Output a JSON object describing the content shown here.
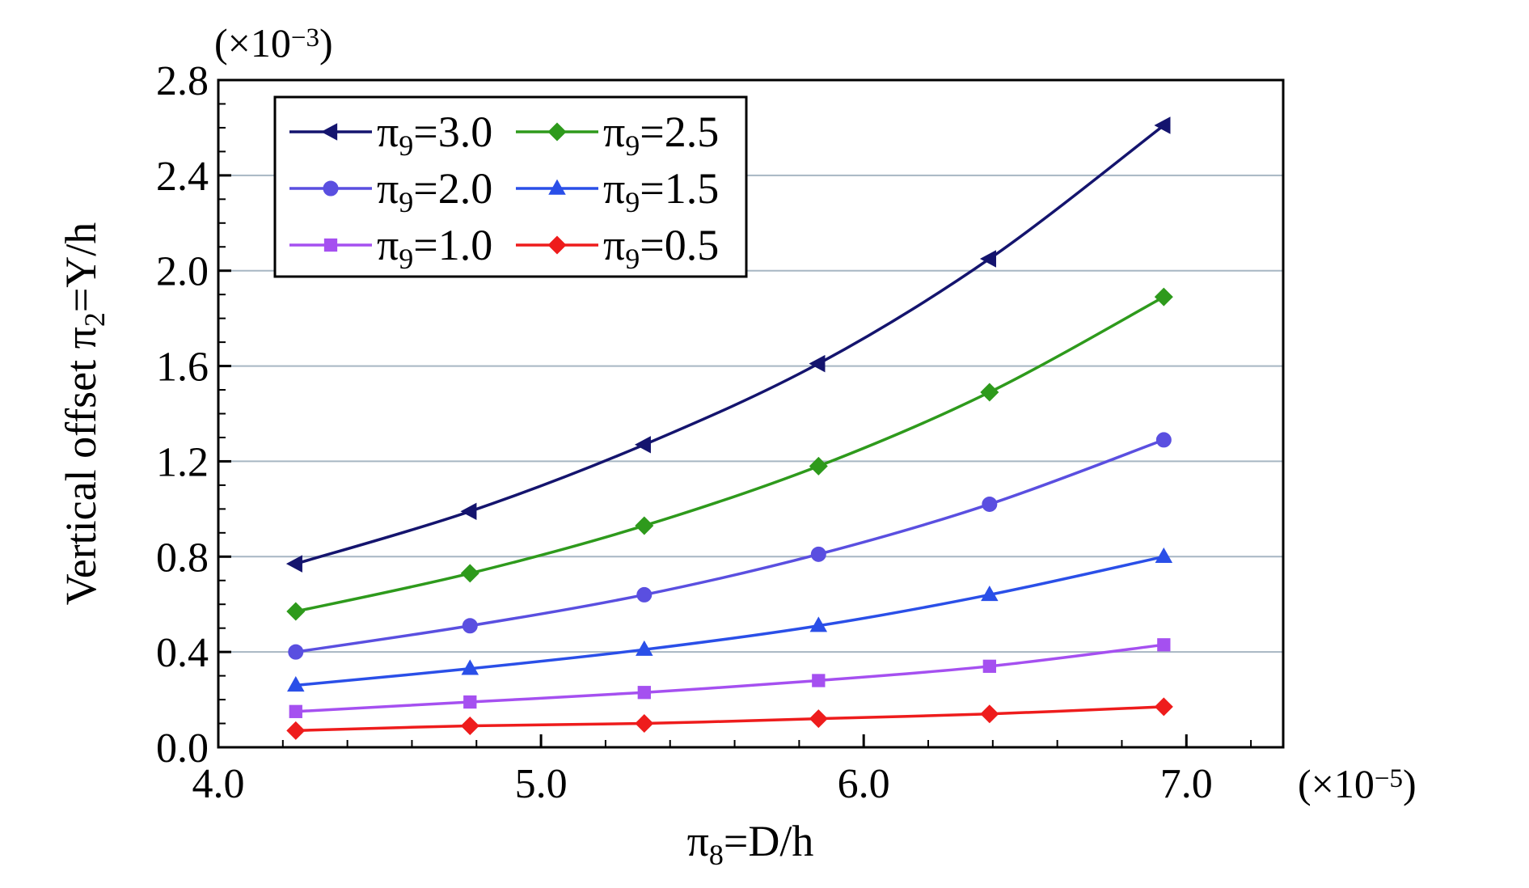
{
  "chart_data": {
    "type": "line",
    "title": "",
    "xlabel": "π₈=D/h",
    "ylabel": "Vertical offset π₂=Y/h",
    "x_multiplier": "(×10⁻⁵)",
    "y_multiplier": "(×10⁻³)",
    "xlim": [
      4.0,
      7.3
    ],
    "ylim": [
      0.0,
      2.8
    ],
    "xticks": [
      "4.0",
      "5.0",
      "6.0",
      "7.0"
    ],
    "yticks": [
      "0.0",
      "0.4",
      "0.8",
      "1.2",
      "1.6",
      "2.0",
      "2.4",
      "2.8"
    ],
    "grid": "horizontal",
    "legend_position": "top-left",
    "x": [
      4.24,
      4.78,
      5.32,
      5.86,
      6.39,
      6.93
    ],
    "series": [
      {
        "name": "π₉=3.0",
        "color": "#14146e",
        "marker": "triangle-left",
        "values": [
          0.77,
          0.99,
          1.27,
          1.61,
          2.05,
          2.61
        ]
      },
      {
        "name": "π₉=2.5",
        "color": "#2e9a1c",
        "marker": "diamond",
        "values": [
          0.57,
          0.73,
          0.93,
          1.18,
          1.49,
          1.89
        ]
      },
      {
        "name": "π₉=2.0",
        "color": "#5a4fe0",
        "marker": "circle",
        "values": [
          0.4,
          0.51,
          0.64,
          0.81,
          1.02,
          1.29
        ]
      },
      {
        "name": "π₉=1.5",
        "color": "#2a4fe8",
        "marker": "triangle-up",
        "values": [
          0.26,
          0.33,
          0.41,
          0.51,
          0.64,
          0.8
        ]
      },
      {
        "name": "π₉=1.0",
        "color": "#a550f0",
        "marker": "square",
        "values": [
          0.15,
          0.19,
          0.23,
          0.28,
          0.34,
          0.43
        ]
      },
      {
        "name": "π₉=0.5",
        "color": "#ee1c1c",
        "marker": "diamond",
        "values": [
          0.07,
          0.09,
          0.1,
          0.12,
          0.14,
          0.17
        ]
      }
    ]
  }
}
